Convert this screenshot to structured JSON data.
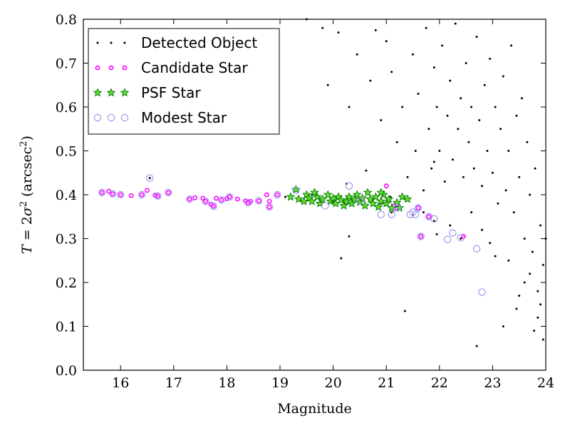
{
  "chart_data": {
    "type": "scatter",
    "xlabel": "Magnitude",
    "ylabel_parts": {
      "italic_T": "T",
      "eq": " = 2",
      "sigma": "σ",
      "sup2": "2",
      "unit_open": " (arcsec",
      "unit_sup": "2",
      "unit_close": ")"
    },
    "xlim": [
      15.3,
      24
    ],
    "ylim": [
      0.0,
      0.8
    ],
    "x_ticks": [
      16,
      17,
      18,
      19,
      20,
      21,
      22,
      23,
      24
    ],
    "y_ticks": [
      0.0,
      0.1,
      0.2,
      0.3,
      0.4,
      0.5,
      0.6,
      0.7,
      0.8
    ],
    "y_tick_labels": [
      "0.0",
      "0.1",
      "0.2",
      "0.3",
      "0.4",
      "0.5",
      "0.6",
      "0.7",
      "0.8"
    ],
    "grid": false,
    "legend_position": "top-left",
    "series": [
      {
        "name": "Detected Object",
        "marker": "dot",
        "color": "#000000",
        "points": [
          [
            16.55,
            0.438
          ],
          [
            20.8,
            0.775
          ],
          [
            20.3,
            0.305
          ],
          [
            20.62,
            0.455
          ],
          [
            21.9,
            0.475
          ],
          [
            20.15,
            0.255
          ],
          [
            21.35,
            0.135
          ],
          [
            20.25,
            0.425
          ],
          [
            21.08,
            0.395
          ],
          [
            19.1,
            0.395
          ],
          [
            19.6,
            0.4
          ],
          [
            20.0,
            0.385
          ],
          [
            20.5,
            0.39
          ],
          [
            20.9,
            0.38
          ],
          [
            21.1,
            0.36
          ],
          [
            21.5,
            0.355
          ],
          [
            21.7,
            0.36
          ],
          [
            21.9,
            0.34
          ],
          [
            19.5,
            0.8
          ],
          [
            19.8,
            0.78
          ],
          [
            20.1,
            0.77
          ],
          [
            19.9,
            0.65
          ],
          [
            20.3,
            0.6
          ],
          [
            20.45,
            0.72
          ],
          [
            20.7,
            0.66
          ],
          [
            20.9,
            0.57
          ],
          [
            21.0,
            0.75
          ],
          [
            21.1,
            0.68
          ],
          [
            21.2,
            0.52
          ],
          [
            21.3,
            0.6
          ],
          [
            21.4,
            0.44
          ],
          [
            21.5,
            0.72
          ],
          [
            21.55,
            0.5
          ],
          [
            21.6,
            0.63
          ],
          [
            21.7,
            0.41
          ],
          [
            21.75,
            0.78
          ],
          [
            21.8,
            0.55
          ],
          [
            21.85,
            0.46
          ],
          [
            21.9,
            0.69
          ],
          [
            21.95,
            0.6
          ],
          [
            22.0,
            0.5
          ],
          [
            22.05,
            0.74
          ],
          [
            22.1,
            0.43
          ],
          [
            22.15,
            0.58
          ],
          [
            22.2,
            0.66
          ],
          [
            22.25,
            0.48
          ],
          [
            22.3,
            0.79
          ],
          [
            22.35,
            0.55
          ],
          [
            22.4,
            0.62
          ],
          [
            22.45,
            0.44
          ],
          [
            22.5,
            0.7
          ],
          [
            22.55,
            0.52
          ],
          [
            22.6,
            0.6
          ],
          [
            22.65,
            0.46
          ],
          [
            22.7,
            0.76
          ],
          [
            22.75,
            0.57
          ],
          [
            22.8,
            0.42
          ],
          [
            22.85,
            0.65
          ],
          [
            22.9,
            0.5
          ],
          [
            22.95,
            0.71
          ],
          [
            23.0,
            0.45
          ],
          [
            23.05,
            0.6
          ],
          [
            23.1,
            0.38
          ],
          [
            23.15,
            0.55
          ],
          [
            23.2,
            0.67
          ],
          [
            23.25,
            0.41
          ],
          [
            23.3,
            0.5
          ],
          [
            23.35,
            0.74
          ],
          [
            23.4,
            0.36
          ],
          [
            23.45,
            0.58
          ],
          [
            23.5,
            0.44
          ],
          [
            23.55,
            0.62
          ],
          [
            23.6,
            0.3
          ],
          [
            23.65,
            0.52
          ],
          [
            23.7,
            0.4
          ],
          [
            23.75,
            0.27
          ],
          [
            23.8,
            0.46
          ],
          [
            23.85,
            0.18
          ],
          [
            23.9,
            0.33
          ],
          [
            23.95,
            0.24
          ],
          [
            24.0,
            0.3
          ],
          [
            23.85,
            0.12
          ],
          [
            23.78,
            0.09
          ],
          [
            23.6,
            0.2
          ],
          [
            23.45,
            0.14
          ],
          [
            23.2,
            0.1
          ],
          [
            23.3,
            0.25
          ],
          [
            23.95,
            0.07
          ],
          [
            22.7,
            0.055
          ],
          [
            23.05,
            0.26
          ],
          [
            22.95,
            0.29
          ],
          [
            22.8,
            0.32
          ],
          [
            22.6,
            0.36
          ],
          [
            22.4,
            0.3
          ],
          [
            22.2,
            0.33
          ],
          [
            21.95,
            0.31
          ],
          [
            23.5,
            0.17
          ],
          [
            23.7,
            0.22
          ],
          [
            23.9,
            0.15
          ]
        ]
      },
      {
        "name": "Candidate Star",
        "marker": "circle-small",
        "color": "#ff00ff",
        "points": [
          [
            15.65,
            0.405
          ],
          [
            15.78,
            0.408
          ],
          [
            15.85,
            0.402
          ],
          [
            16.0,
            0.4
          ],
          [
            16.2,
            0.398
          ],
          [
            16.4,
            0.4
          ],
          [
            16.5,
            0.41
          ],
          [
            16.65,
            0.399
          ],
          [
            16.7,
            0.397
          ],
          [
            16.9,
            0.405
          ],
          [
            17.3,
            0.39
          ],
          [
            17.4,
            0.393
          ],
          [
            17.55,
            0.392
          ],
          [
            17.6,
            0.385
          ],
          [
            17.7,
            0.378
          ],
          [
            17.75,
            0.374
          ],
          [
            17.8,
            0.392
          ],
          [
            17.9,
            0.388
          ],
          [
            18.0,
            0.391
          ],
          [
            18.05,
            0.395
          ],
          [
            18.2,
            0.39
          ],
          [
            18.35,
            0.386
          ],
          [
            18.4,
            0.382
          ],
          [
            18.45,
            0.385
          ],
          [
            18.6,
            0.386
          ],
          [
            18.75,
            0.4
          ],
          [
            18.8,
            0.385
          ],
          [
            18.8,
            0.372
          ],
          [
            18.95,
            0.4
          ],
          [
            21.0,
            0.42
          ],
          [
            21.15,
            0.375
          ],
          [
            21.2,
            0.37
          ],
          [
            21.6,
            0.37
          ],
          [
            21.65,
            0.305
          ],
          [
            21.8,
            0.35
          ],
          [
            22.45,
            0.305
          ]
        ]
      },
      {
        "name": "PSF Star",
        "marker": "star",
        "color": "#00aa00",
        "points": [
          [
            19.2,
            0.395
          ],
          [
            19.3,
            0.412
          ],
          [
            19.35,
            0.39
          ],
          [
            19.45,
            0.385
          ],
          [
            19.5,
            0.4
          ],
          [
            19.55,
            0.392
          ],
          [
            19.6,
            0.385
          ],
          [
            19.7,
            0.395
          ],
          [
            19.75,
            0.38
          ],
          [
            19.8,
            0.39
          ],
          [
            19.9,
            0.4
          ],
          [
            19.95,
            0.385
          ],
          [
            20.0,
            0.392
          ],
          [
            20.05,
            0.38
          ],
          [
            20.1,
            0.395
          ],
          [
            20.15,
            0.388
          ],
          [
            20.2,
            0.375
          ],
          [
            20.25,
            0.385
          ],
          [
            20.3,
            0.395
          ],
          [
            20.35,
            0.38
          ],
          [
            20.4,
            0.39
          ],
          [
            20.45,
            0.4
          ],
          [
            20.5,
            0.383
          ],
          [
            20.55,
            0.392
          ],
          [
            20.6,
            0.375
          ],
          [
            20.65,
            0.405
          ],
          [
            20.7,
            0.39
          ],
          [
            20.75,
            0.38
          ],
          [
            20.8,
            0.395
          ],
          [
            20.85,
            0.372
          ],
          [
            20.9,
            0.385
          ],
          [
            20.95,
            0.4
          ],
          [
            21.0,
            0.38
          ],
          [
            21.05,
            0.39
          ],
          [
            21.1,
            0.37
          ],
          [
            21.2,
            0.382
          ],
          [
            21.3,
            0.395
          ],
          [
            21.4,
            0.39
          ],
          [
            21.25,
            0.37
          ],
          [
            19.65,
            0.405
          ],
          [
            20.9,
            0.405
          ]
        ]
      },
      {
        "name": "Modest Star",
        "marker": "circle-open",
        "color": "#9999ee",
        "points": [
          [
            15.65,
            0.405
          ],
          [
            15.85,
            0.402
          ],
          [
            16.0,
            0.4
          ],
          [
            16.4,
            0.4
          ],
          [
            16.55,
            0.438
          ],
          [
            16.7,
            0.397
          ],
          [
            16.9,
            0.405
          ],
          [
            17.3,
            0.39
          ],
          [
            17.6,
            0.385
          ],
          [
            17.75,
            0.374
          ],
          [
            17.9,
            0.388
          ],
          [
            18.05,
            0.395
          ],
          [
            18.4,
            0.382
          ],
          [
            18.6,
            0.386
          ],
          [
            18.8,
            0.372
          ],
          [
            18.95,
            0.4
          ],
          [
            19.85,
            0.375
          ],
          [
            20.3,
            0.42
          ],
          [
            20.9,
            0.355
          ],
          [
            21.1,
            0.355
          ],
          [
            21.2,
            0.37
          ],
          [
            21.45,
            0.355
          ],
          [
            21.5,
            0.36
          ],
          [
            21.55,
            0.355
          ],
          [
            21.6,
            0.37
          ],
          [
            21.65,
            0.305
          ],
          [
            21.8,
            0.35
          ],
          [
            21.9,
            0.345
          ],
          [
            22.15,
            0.298
          ],
          [
            22.25,
            0.313
          ],
          [
            22.4,
            0.302
          ],
          [
            22.7,
            0.277
          ],
          [
            22.8,
            0.178
          ],
          [
            19.3,
            0.41
          ],
          [
            20.5,
            0.385
          ]
        ]
      }
    ]
  }
}
